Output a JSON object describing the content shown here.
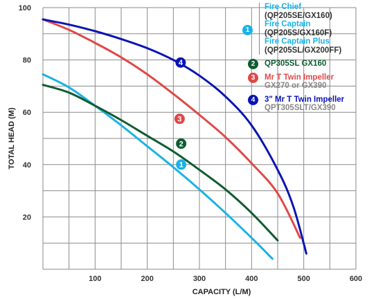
{
  "chart_data": {
    "type": "line",
    "xlabel": "CAPACITY (L/M)",
    "ylabel": "TOTAL HEAD (M)",
    "xlim": [
      0,
      600
    ],
    "ylim": [
      0,
      100
    ],
    "x_ticks": [
      "100",
      "200",
      "300",
      "400",
      "500",
      "600"
    ],
    "y_ticks": [
      "20",
      "40",
      "60",
      "80",
      "100"
    ],
    "grid": true,
    "legend_position": "right",
    "series": [
      {
        "id": "1",
        "color": "#1ab2e6",
        "label_at": [
          265,
          40
        ],
        "x": [
          0,
          50,
          100,
          150,
          200,
          250,
          300,
          350,
          400,
          440
        ],
        "y": [
          74.5,
          69.5,
          62.5,
          55,
          47,
          39,
          30.5,
          21.5,
          12,
          4
        ]
      },
      {
        "id": "2",
        "color": "#0f5c31",
        "label_at": [
          265,
          48
        ],
        "x": [
          0,
          50,
          100,
          150,
          200,
          250,
          300,
          350,
          400,
          450
        ],
        "y": [
          70.5,
          67.5,
          62.5,
          57,
          51,
          45,
          38,
          30.5,
          21.5,
          11
        ]
      },
      {
        "id": "3",
        "color": "#e04848",
        "label_at": [
          262,
          57.5
        ],
        "x": [
          0,
          50,
          100,
          150,
          200,
          250,
          300,
          350,
          400,
          450,
          493
        ],
        "y": [
          95.5,
          91.5,
          86.5,
          81,
          74.5,
          67,
          59,
          50.5,
          40.5,
          29,
          12
        ]
      },
      {
        "id": "4",
        "color": "#0a14b3",
        "label_at": [
          264,
          79
        ],
        "x": [
          0,
          50,
          100,
          150,
          200,
          250,
          300,
          350,
          400,
          450,
          480,
          505
        ],
        "y": [
          95.5,
          93.5,
          91,
          88,
          84.5,
          80,
          74,
          66,
          55,
          38,
          24,
          6
        ]
      }
    ]
  },
  "legend": [
    {
      "id": "1",
      "color": "#1ab2e6",
      "lines": [
        {
          "text": "Fire Chief",
          "style": "accent"
        },
        {
          "text": "(QP205SE/GX160)",
          "style": "dark"
        },
        {
          "text": "Fire Captain",
          "style": "accent"
        },
        {
          "text": "(QP205S/GX160F)",
          "style": "dark"
        },
        {
          "text": "Fire Captain Plus",
          "style": "accent"
        },
        {
          "text": "(QP205SL/GX200FF)",
          "style": "dark"
        }
      ]
    },
    {
      "id": "2",
      "color": "#0f5c31",
      "lines": [
        {
          "text": "QP305SL GX160",
          "style": "accent"
        }
      ]
    },
    {
      "id": "3",
      "color": "#e04848",
      "lines": [
        {
          "text": "Mr T Twin Impeller",
          "style": "accent"
        },
        {
          "text": "GX270 or GX390",
          "style": "sub"
        }
      ]
    },
    {
      "id": "4",
      "color": "#0a14b3",
      "lines": [
        {
          "text": "3\" Mr T Twin Impeller",
          "style": "accent"
        },
        {
          "text": "QPT305SLT/GX390",
          "style": "sub"
        }
      ]
    }
  ]
}
